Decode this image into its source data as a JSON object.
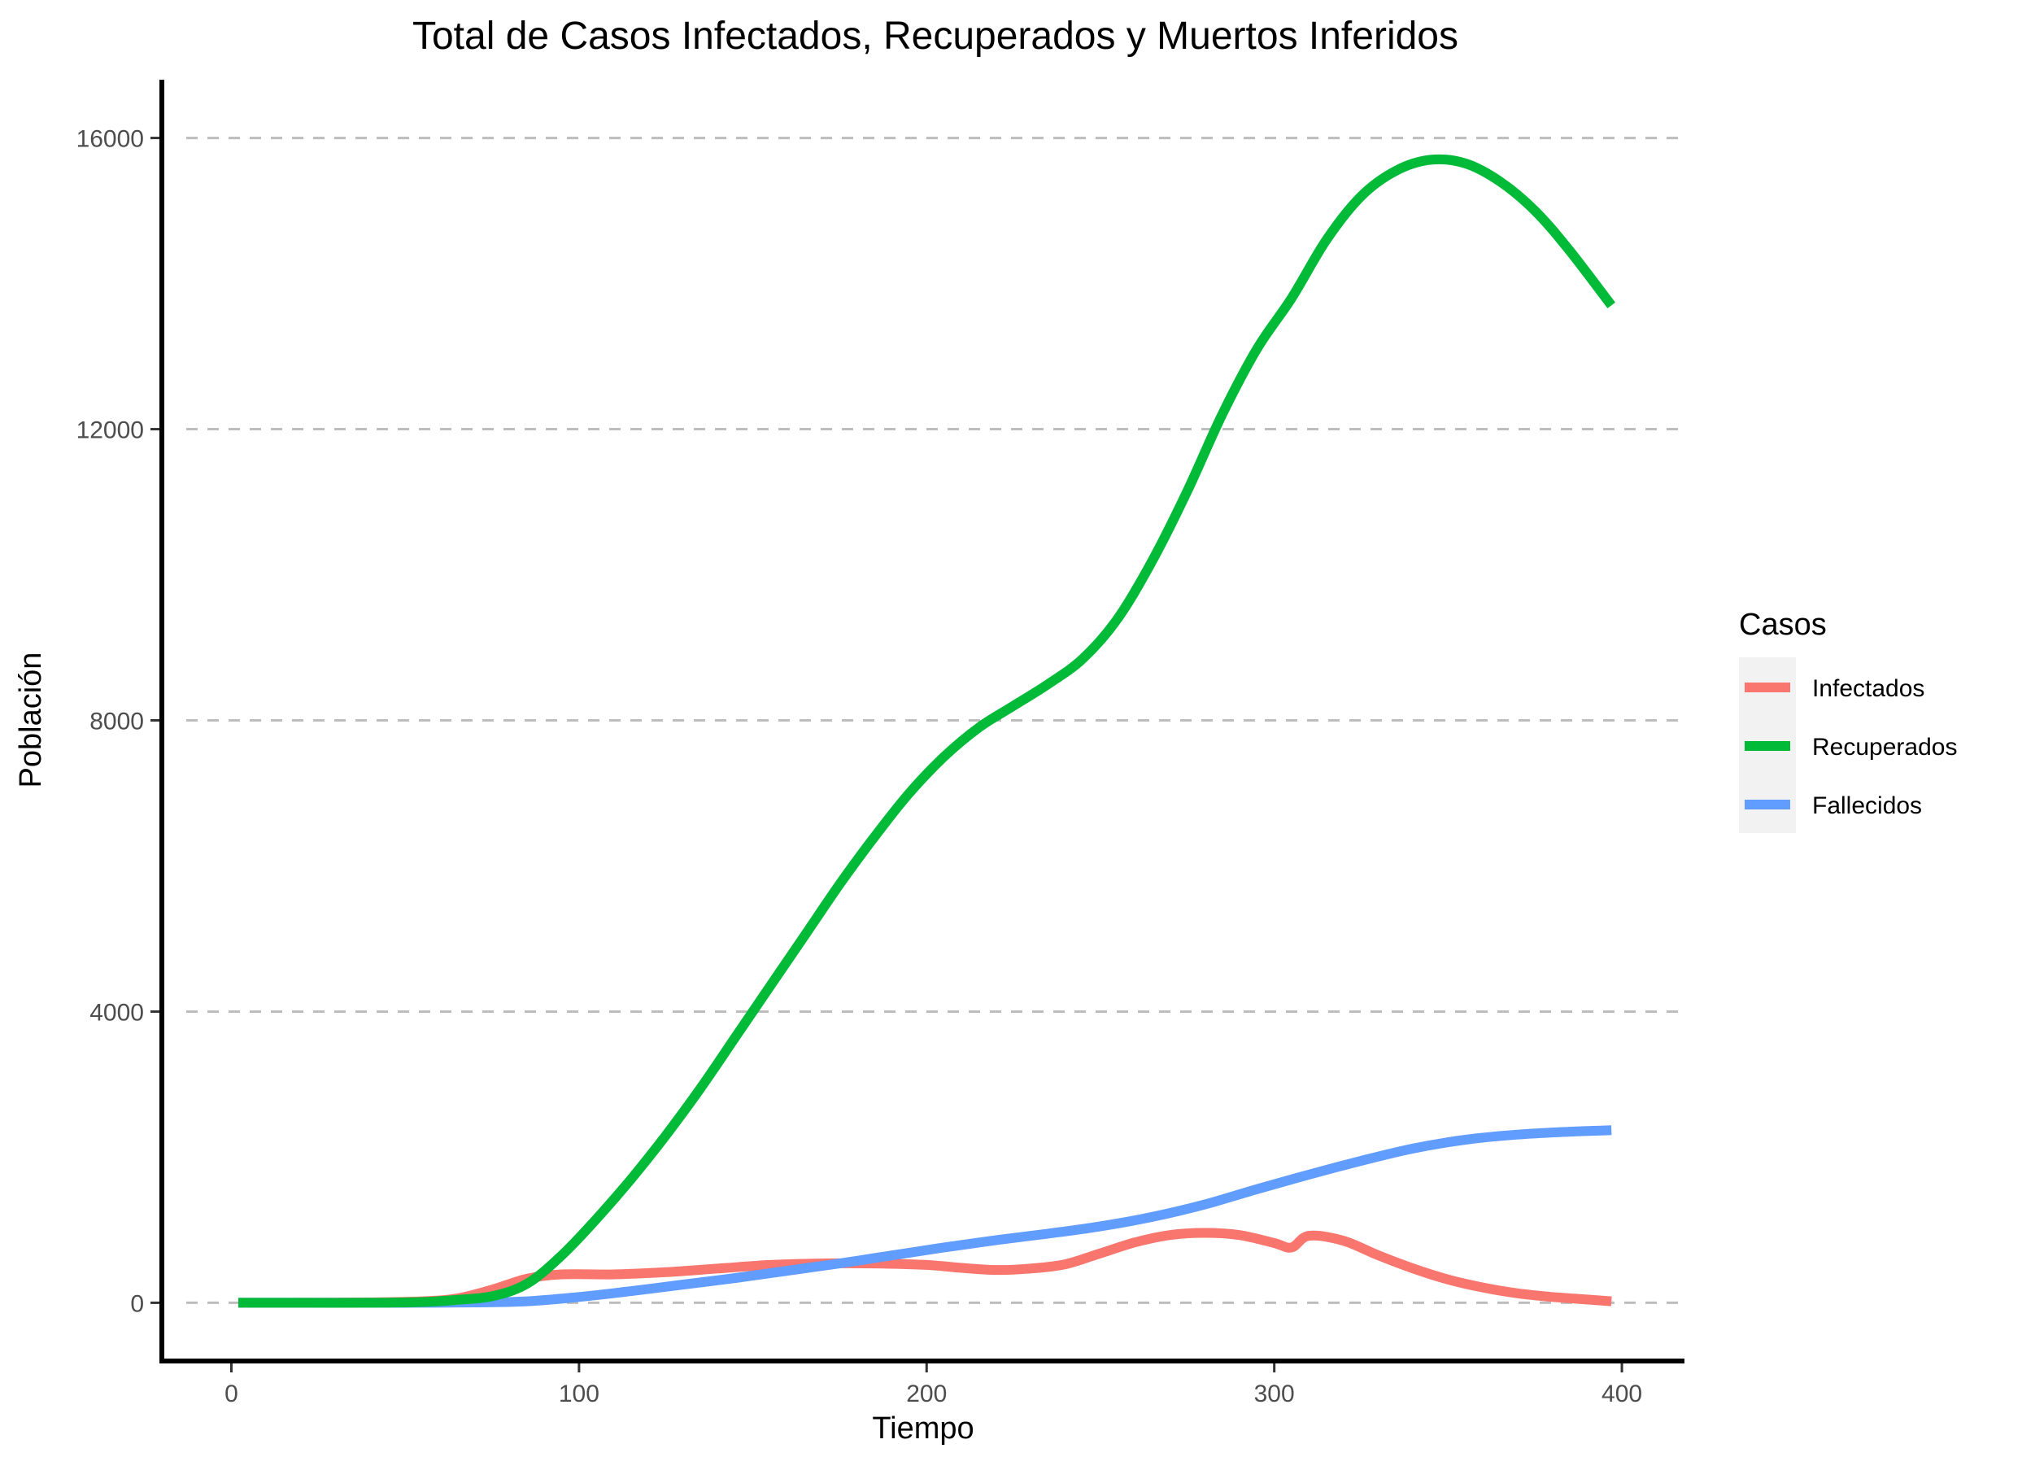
{
  "chart_data": {
    "type": "line",
    "title": "Total de Casos Infectados, Recuperados y Muertos Inferidos",
    "xlabel": "Tiempo",
    "ylabel": "Población",
    "xlim": [
      -20,
      418
    ],
    "ylim": [
      -800,
      16800
    ],
    "x_ticks": [
      0,
      100,
      200,
      300,
      400
    ],
    "x_tick_labels": [
      "0",
      "100",
      "200",
      "300",
      "400"
    ],
    "y_ticks": [
      0,
      4000,
      8000,
      12000,
      16000
    ],
    "y_tick_labels": [
      "0",
      "4000",
      "8000",
      "12000",
      "16000"
    ],
    "grid": "horizontal dashed",
    "legend": {
      "title": "Casos",
      "position": "right",
      "entries": [
        "Infectados",
        "Recuperados",
        "Fallecidos"
      ]
    },
    "series": [
      {
        "name": "Infectados",
        "color": "#F8766D",
        "points": [
          [
            2,
            0
          ],
          [
            20,
            0
          ],
          [
            40,
            5
          ],
          [
            55,
            20
          ],
          [
            65,
            60
          ],
          [
            75,
            180
          ],
          [
            85,
            330
          ],
          [
            95,
            390
          ],
          [
            110,
            390
          ],
          [
            125,
            420
          ],
          [
            140,
            470
          ],
          [
            155,
            520
          ],
          [
            170,
            540
          ],
          [
            185,
            540
          ],
          [
            200,
            520
          ],
          [
            210,
            480
          ],
          [
            220,
            450
          ],
          [
            230,
            470
          ],
          [
            240,
            530
          ],
          [
            250,
            680
          ],
          [
            260,
            830
          ],
          [
            270,
            930
          ],
          [
            280,
            960
          ],
          [
            290,
            930
          ],
          [
            300,
            820
          ],
          [
            305,
            760
          ],
          [
            310,
            920
          ],
          [
            320,
            850
          ],
          [
            330,
            650
          ],
          [
            340,
            470
          ],
          [
            350,
            320
          ],
          [
            360,
            210
          ],
          [
            370,
            130
          ],
          [
            380,
            80
          ],
          [
            390,
            45
          ],
          [
            397,
            20
          ]
        ]
      },
      {
        "name": "Recuperados",
        "color": "#00BA38",
        "points": [
          [
            2,
            0
          ],
          [
            20,
            0
          ],
          [
            40,
            0
          ],
          [
            55,
            10
          ],
          [
            65,
            40
          ],
          [
            75,
            90
          ],
          [
            85,
            260
          ],
          [
            95,
            650
          ],
          [
            105,
            1150
          ],
          [
            115,
            1700
          ],
          [
            125,
            2300
          ],
          [
            135,
            2950
          ],
          [
            145,
            3650
          ],
          [
            155,
            4350
          ],
          [
            165,
            5050
          ],
          [
            175,
            5750
          ],
          [
            185,
            6400
          ],
          [
            195,
            7000
          ],
          [
            205,
            7500
          ],
          [
            215,
            7900
          ],
          [
            225,
            8200
          ],
          [
            235,
            8500
          ],
          [
            245,
            8850
          ],
          [
            255,
            9400
          ],
          [
            265,
            10200
          ],
          [
            275,
            11150
          ],
          [
            285,
            12200
          ],
          [
            295,
            13100
          ],
          [
            305,
            13800
          ],
          [
            315,
            14600
          ],
          [
            325,
            15200
          ],
          [
            335,
            15550
          ],
          [
            345,
            15700
          ],
          [
            355,
            15650
          ],
          [
            365,
            15400
          ],
          [
            375,
            15000
          ],
          [
            385,
            14450
          ],
          [
            397,
            13700
          ]
        ]
      },
      {
        "name": "Fallecidos",
        "color": "#619CFF",
        "points": [
          [
            2,
            0
          ],
          [
            20,
            0
          ],
          [
            40,
            0
          ],
          [
            55,
            0
          ],
          [
            70,
            5
          ],
          [
            85,
            20
          ],
          [
            100,
            80
          ],
          [
            115,
            160
          ],
          [
            130,
            250
          ],
          [
            145,
            340
          ],
          [
            160,
            440
          ],
          [
            175,
            540
          ],
          [
            190,
            650
          ],
          [
            205,
            760
          ],
          [
            220,
            860
          ],
          [
            235,
            950
          ],
          [
            250,
            1050
          ],
          [
            265,
            1180
          ],
          [
            280,
            1350
          ],
          [
            295,
            1560
          ],
          [
            310,
            1760
          ],
          [
            325,
            1950
          ],
          [
            340,
            2120
          ],
          [
            355,
            2240
          ],
          [
            370,
            2310
          ],
          [
            385,
            2350
          ],
          [
            397,
            2370
          ]
        ]
      }
    ]
  }
}
